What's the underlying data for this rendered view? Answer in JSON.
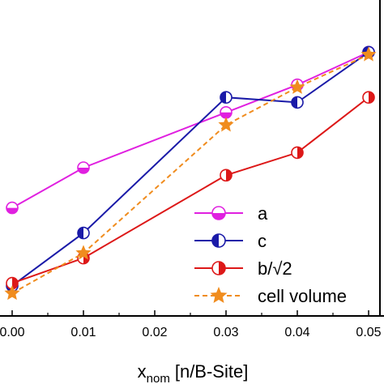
{
  "chart_data": {
    "type": "line",
    "xlabel_main": "x",
    "xlabel_sub": "nom",
    "xlabel_unit": "[n/B-Site]",
    "x_ticks": [
      "0.00",
      "0.01",
      "0.02",
      "0.03",
      "0.04",
      "0.05"
    ],
    "xlim": [
      0.0,
      0.05
    ],
    "ylim": [
      0.0,
      1.0
    ],
    "grid": false,
    "legend_position": "bottom-right",
    "series": [
      {
        "name": "a",
        "color": "#e020e0",
        "line": "solid",
        "marker": "half-filled circle (bottom)",
        "x": [
          0.0,
          0.01,
          0.03,
          0.04,
          0.05
        ],
        "y": [
          0.34,
          0.5,
          0.72,
          0.83,
          0.96
        ]
      },
      {
        "name": "c",
        "color": "#1a1aa8",
        "line": "solid",
        "marker": "half-filled circle (left)",
        "x": [
          0.0,
          0.01,
          0.03,
          0.04,
          0.05
        ],
        "y": [
          0.03,
          0.24,
          0.78,
          0.76,
          0.96
        ]
      },
      {
        "name": "b/√2",
        "color": "#dd1818",
        "line": "solid",
        "marker": "half-filled circle (right)",
        "x": [
          0.0,
          0.01,
          0.03,
          0.04,
          0.05
        ],
        "y": [
          0.04,
          0.14,
          0.47,
          0.56,
          0.78
        ]
      },
      {
        "name": "cell volume",
        "color": "#f08c1e",
        "line": "dashed",
        "marker": "star",
        "x": [
          0.0,
          0.01,
          0.03,
          0.04,
          0.05
        ],
        "y": [
          0.0,
          0.16,
          0.67,
          0.82,
          0.95
        ]
      }
    ]
  }
}
